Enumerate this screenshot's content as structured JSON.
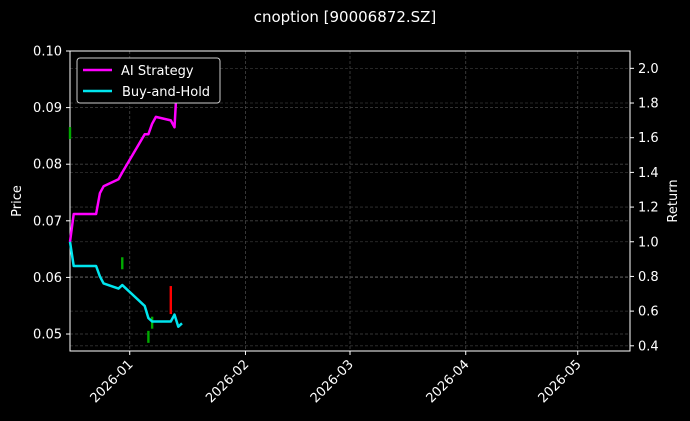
{
  "title": "cnoption [90006872.SZ]",
  "axes": {
    "left_label": "Price",
    "right_label": "Return",
    "left_ticks": [
      "0.05",
      "0.06",
      "0.07",
      "0.08",
      "0.09",
      "0.10"
    ],
    "right_ticks": [
      "0.4",
      "0.6",
      "0.8",
      "1.0",
      "1.2",
      "1.4",
      "1.6",
      "1.8",
      "2.0"
    ],
    "x_ticks": [
      "2026-01",
      "2026-02",
      "2026-03",
      "2026-04",
      "2026-05"
    ]
  },
  "legend": {
    "items": [
      {
        "label": "AI Strategy",
        "color": "#ff00ff"
      },
      {
        "label": "Buy-and-Hold",
        "color": "#00e5ee"
      }
    ]
  },
  "chart_data": {
    "type": "line",
    "title": "cnoption [90006872.SZ]",
    "xlabel": "",
    "ylabel": "Price",
    "ylabel_right": "Return",
    "ylim": [
      0.047,
      0.1
    ],
    "ylim_right": [
      0.37,
      2.1
    ],
    "x_range": [
      "2025-12-16",
      "2026-05-15"
    ],
    "grid": true,
    "legend_position": "upper left",
    "x_ticks": [
      "2026-01",
      "2026-02",
      "2026-03",
      "2026-04",
      "2026-05"
    ],
    "series": [
      {
        "name": "AI Strategy",
        "axis": "right",
        "color": "#ff00ff",
        "x": [
          "2025-12-16",
          "2025-12-17",
          "2025-12-23",
          "2025-12-24",
          "2025-12-25",
          "2025-12-29",
          "2025-12-30",
          "2026-01-05",
          "2026-01-06",
          "2026-01-07",
          "2026-01-08",
          "2026-01-12",
          "2026-01-13",
          "2026-01-14"
        ],
        "values": [
          1.0,
          1.16,
          1.16,
          1.28,
          1.32,
          1.36,
          1.4,
          1.62,
          1.62,
          1.68,
          1.72,
          1.7,
          1.66,
          2.05
        ]
      },
      {
        "name": "Buy-and-Hold",
        "axis": "right",
        "color": "#00e5ee",
        "x": [
          "2025-12-16",
          "2025-12-17",
          "2025-12-23",
          "2025-12-24",
          "2025-12-25",
          "2025-12-29",
          "2025-12-30",
          "2026-01-05",
          "2026-01-06",
          "2026-01-07",
          "2026-01-08",
          "2026-01-12",
          "2026-01-13",
          "2026-01-14",
          "2026-01-15"
        ],
        "values": [
          1.0,
          0.86,
          0.86,
          0.8,
          0.76,
          0.73,
          0.75,
          0.63,
          0.56,
          0.54,
          0.54,
          0.54,
          0.58,
          0.51,
          0.53
        ]
      },
      {
        "name": "Price candles",
        "axis": "left",
        "type": "candlestick",
        "x": [
          "2025-12-16",
          "2025-12-30",
          "2026-01-06",
          "2026-01-07",
          "2026-01-12"
        ],
        "values": [
          0.0855,
          0.0625,
          0.0495,
          0.052,
          0.056
        ],
        "colors": [
          "#00aa00",
          "#00aa00",
          "#00aa00",
          "#00aa00",
          "#ff0000"
        ]
      }
    ]
  }
}
